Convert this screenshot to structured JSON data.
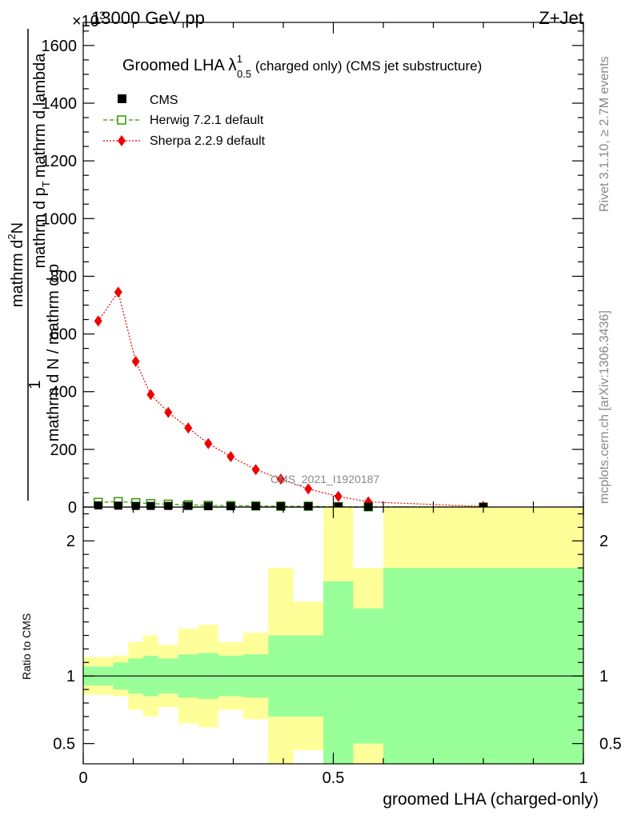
{
  "header": {
    "energy_label": "13000 GeV pp",
    "process_label": "Z+Jet",
    "exponent_label": "×10",
    "exponent_power": "3"
  },
  "side_labels": {
    "rivet": "Rivet 3.1.10, ≥ 2.7M events",
    "mcplots": "mcplots.cern.ch [arXiv:1306.3436]"
  },
  "watermark": "CMS_2021_I1920187",
  "chart_data": [
    {
      "type": "line",
      "title": {
        "main": "Groomed LHA ",
        "lambda": "λ",
        "sup": "1",
        "sub": "0.5",
        "rest": " (charged only) (CMS jet substructure)"
      },
      "ylabel": {
        "top": "1",
        "numerator": "mathrm d",
        "N_sup": "2",
        "N": "N",
        "denominator": "mathrm d N / mathrm d p",
        "denominator2": "mathrm d p",
        "T_sub": "T",
        "mid": "mathrm d lambda"
      },
      "ylim": [
        0,
        1680
      ],
      "yticks": [
        0,
        200,
        400,
        600,
        800,
        1000,
        1200,
        1400,
        1600
      ],
      "ytick_labels": [
        "0",
        "200",
        "400",
        "600",
        "800",
        "1000",
        "1200",
        "1400",
        "1600"
      ],
      "xlim": [
        0,
        1
      ],
      "legend": {
        "placement": "top-left",
        "entries": [
          "CMS",
          "Herwig 7.2.1 default",
          "Sherpa 2.2.9 default"
        ]
      },
      "series": [
        {
          "name": "CMS",
          "color": "#000000",
          "x": [
            0.03,
            0.07,
            0.105,
            0.135,
            0.17,
            0.21,
            0.25,
            0.295,
            0.345,
            0.395,
            0.45,
            0.51,
            0.57,
            0.8
          ],
          "values": [
            6,
            5,
            4,
            4,
            4,
            4,
            3,
            3,
            3,
            3,
            3,
            2,
            1,
            0
          ]
        },
        {
          "name": "Herwig 7.2.1 default",
          "color": "#339900",
          "x": [
            0.03,
            0.07,
            0.105,
            0.135,
            0.17,
            0.21,
            0.25,
            0.295,
            0.345,
            0.395,
            0.45,
            0.51,
            0.57,
            0.8
          ],
          "values": [
            16,
            19,
            15,
            12,
            10,
            8,
            6,
            5,
            4,
            3,
            3,
            1,
            1,
            0
          ]
        },
        {
          "name": "Sherpa 2.2.9 default",
          "color": "#ee0000",
          "x": [
            0.03,
            0.07,
            0.105,
            0.135,
            0.17,
            0.21,
            0.25,
            0.295,
            0.345,
            0.395,
            0.45,
            0.51,
            0.57,
            0.8
          ],
          "values": [
            645,
            745,
            505,
            390,
            328,
            274,
            220,
            175,
            130,
            97,
            63,
            37,
            18,
            2
          ]
        }
      ]
    },
    {
      "type": "area",
      "ylabel": "Ratio to CMS",
      "xlabel": "groomed LHA (charged-only)",
      "ylim": [
        0.35,
        2.25
      ],
      "yticks": [
        0.5,
        1,
        2
      ],
      "ytick_labels": [
        "0.5",
        "1",
        "2"
      ],
      "xlim": [
        0,
        1
      ],
      "xticks": [
        0,
        0.5,
        1
      ],
      "xtick_labels": [
        "0",
        "0.5",
        "1"
      ],
      "reference_line": 1,
      "bands": {
        "stat_color": "#99ff99",
        "total_color": "#ffff99",
        "bins": [
          {
            "x0": 0.0,
            "x1": 0.06,
            "stat_lo": 0.93,
            "stat_hi": 1.07,
            "tot_lo": 0.86,
            "tot_hi": 1.14
          },
          {
            "x0": 0.06,
            "x1": 0.09,
            "stat_lo": 0.9,
            "stat_hi": 1.1,
            "tot_lo": 0.85,
            "tot_hi": 1.15
          },
          {
            "x0": 0.09,
            "x1": 0.12,
            "stat_lo": 0.87,
            "stat_hi": 1.13,
            "tot_lo": 0.75,
            "tot_hi": 1.25
          },
          {
            "x0": 0.12,
            "x1": 0.15,
            "stat_lo": 0.85,
            "stat_hi": 1.15,
            "tot_lo": 0.7,
            "tot_hi": 1.3
          },
          {
            "x0": 0.15,
            "x1": 0.19,
            "stat_lo": 0.87,
            "stat_hi": 1.13,
            "tot_lo": 0.77,
            "tot_hi": 1.23
          },
          {
            "x0": 0.19,
            "x1": 0.23,
            "stat_lo": 0.84,
            "stat_hi": 1.16,
            "tot_lo": 0.65,
            "tot_hi": 1.35
          },
          {
            "x0": 0.23,
            "x1": 0.27,
            "stat_lo": 0.83,
            "stat_hi": 1.17,
            "tot_lo": 0.62,
            "tot_hi": 1.38
          },
          {
            "x0": 0.27,
            "x1": 0.32,
            "stat_lo": 0.85,
            "stat_hi": 1.15,
            "tot_lo": 0.75,
            "tot_hi": 1.25
          },
          {
            "x0": 0.32,
            "x1": 0.37,
            "stat_lo": 0.84,
            "stat_hi": 1.16,
            "tot_lo": 0.68,
            "tot_hi": 1.32
          },
          {
            "x0": 0.37,
            "x1": 0.42,
            "stat_lo": 0.7,
            "stat_hi": 1.3,
            "tot_lo": 0.2,
            "tot_hi": 1.8
          },
          {
            "x0": 0.42,
            "x1": 0.48,
            "stat_lo": 0.7,
            "stat_hi": 1.3,
            "tot_lo": 0.45,
            "tot_hi": 1.55
          },
          {
            "x0": 0.48,
            "x1": 0.54,
            "stat_lo": 0.3,
            "stat_hi": 1.7,
            "tot_lo": 0.2,
            "tot_hi": 3.0
          },
          {
            "x0": 0.54,
            "x1": 0.6,
            "stat_lo": 0.5,
            "stat_hi": 1.5,
            "tot_lo": 0.2,
            "tot_hi": 1.8
          },
          {
            "x0": 0.6,
            "x1": 1.0,
            "stat_lo": 0.2,
            "stat_hi": 1.8,
            "tot_lo": 0.2,
            "tot_hi": 3.0
          }
        ]
      }
    }
  ]
}
